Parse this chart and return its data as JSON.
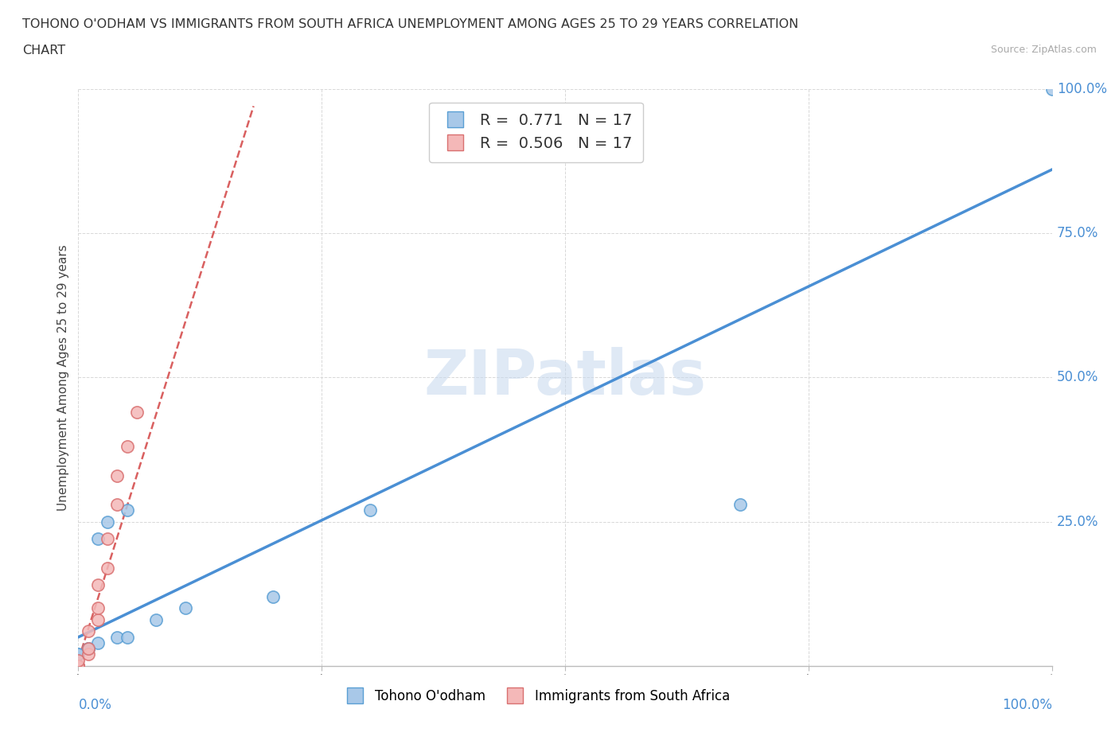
{
  "title_line1": "TOHONO O'ODHAM VS IMMIGRANTS FROM SOUTH AFRICA UNEMPLOYMENT AMONG AGES 25 TO 29 YEARS CORRELATION",
  "title_line2": "CHART",
  "source": "Source: ZipAtlas.com",
  "ylabel": "Unemployment Among Ages 25 to 29 years",
  "right_yticks": [
    "25.0%",
    "50.0%",
    "75.0%",
    "100.0%"
  ],
  "right_ytick_vals": [
    0.25,
    0.5,
    0.75,
    1.0
  ],
  "watermark": "ZIPatlas",
  "legend_label1": "Tohono O'odham",
  "legend_label2": "Immigrants from South Africa",
  "r1": 0.771,
  "n1": 17,
  "r2": 0.506,
  "n2": 17,
  "blue_fill": "#a8c8e8",
  "blue_edge": "#5a9fd4",
  "pink_fill": "#f4b8b8",
  "pink_edge": "#d97070",
  "blue_line": "#4a8fd4",
  "pink_line": "#d96060",
  "blue_scatter": [
    [
      0.0,
      0.0
    ],
    [
      0.0,
      0.02
    ],
    [
      0.0,
      0.02
    ],
    [
      0.01,
      0.03
    ],
    [
      0.01,
      0.03
    ],
    [
      0.02,
      0.04
    ],
    [
      0.02,
      0.22
    ],
    [
      0.03,
      0.25
    ],
    [
      0.04,
      0.05
    ],
    [
      0.05,
      0.27
    ],
    [
      0.05,
      0.05
    ],
    [
      0.08,
      0.08
    ],
    [
      0.11,
      0.1
    ],
    [
      0.2,
      0.12
    ],
    [
      0.3,
      0.27
    ],
    [
      0.68,
      0.28
    ],
    [
      1.0,
      1.0
    ]
  ],
  "pink_scatter": [
    [
      0.0,
      0.0
    ],
    [
      0.0,
      0.0
    ],
    [
      0.0,
      0.0
    ],
    [
      0.0,
      0.0
    ],
    [
      0.0,
      0.01
    ],
    [
      0.01,
      0.02
    ],
    [
      0.01,
      0.03
    ],
    [
      0.01,
      0.06
    ],
    [
      0.02,
      0.08
    ],
    [
      0.02,
      0.1
    ],
    [
      0.02,
      0.14
    ],
    [
      0.03,
      0.17
    ],
    [
      0.03,
      0.22
    ],
    [
      0.04,
      0.28
    ],
    [
      0.04,
      0.33
    ],
    [
      0.05,
      0.38
    ],
    [
      0.06,
      0.44
    ]
  ],
  "blue_line_fixed": [
    0.0,
    0.05,
    1.0,
    0.86
  ],
  "pink_line_fixed": [
    0.0,
    0.01,
    0.18,
    0.97
  ],
  "xlim": [
    0,
    1.0
  ],
  "ylim": [
    0,
    1.0
  ]
}
